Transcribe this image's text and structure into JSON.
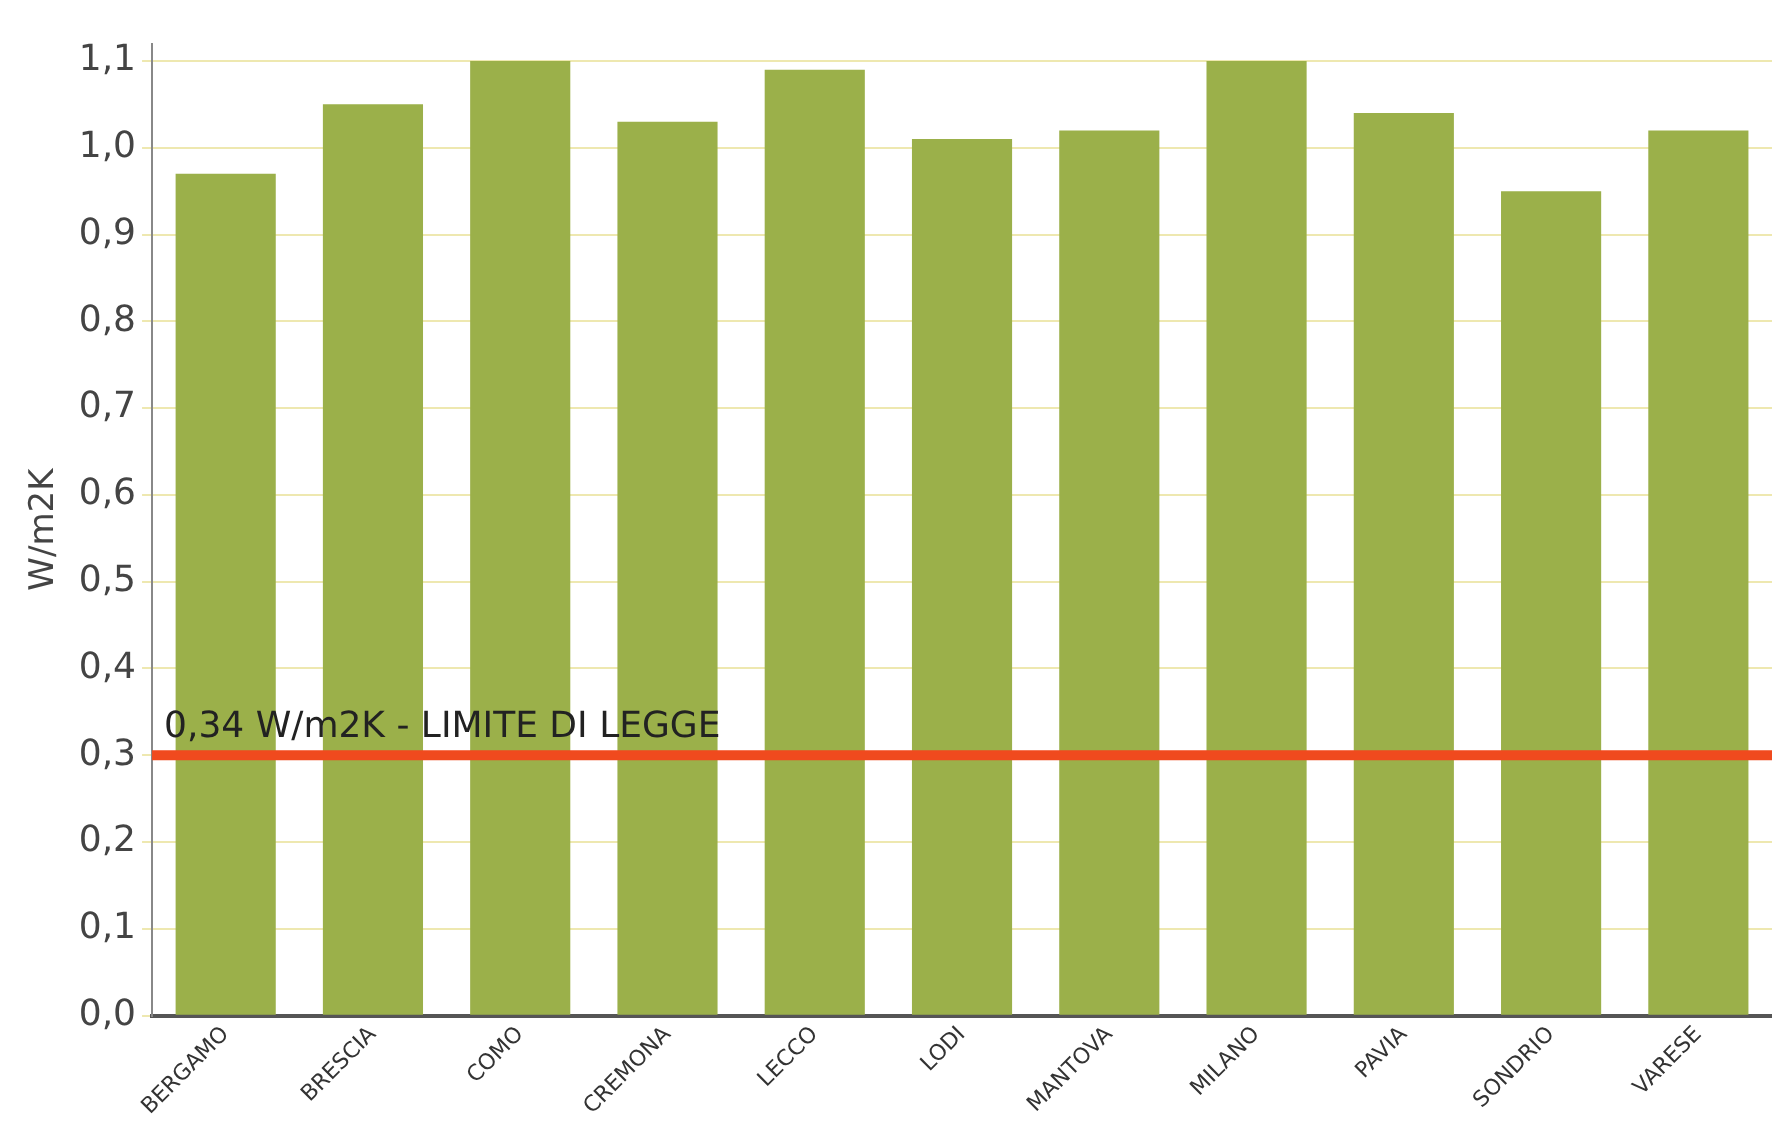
{
  "chart_data": {
    "type": "bar",
    "ylabel": "W/m2K",
    "categories": [
      "BERGAMO",
      "BRESCIA",
      "COMO",
      "CREMONA",
      "LECCO",
      "LODI",
      "MANTOVA",
      "MILANO",
      "PAVIA",
      "SONDRIO",
      "VARESE"
    ],
    "values": [
      0.97,
      1.05,
      1.1,
      1.03,
      1.09,
      1.01,
      1.02,
      1.1,
      1.04,
      0.95,
      1.02
    ],
    "color": "#9bb04a",
    "ylim": [
      0,
      1.12
    ],
    "yticks": [
      {
        "value": 0,
        "label": "0,0"
      },
      {
        "value": 0.1,
        "label": "0,1"
      },
      {
        "value": 0.2,
        "label": "0,2"
      },
      {
        "value": 0.3,
        "label": "0,3"
      },
      {
        "value": 0.4,
        "label": "0,4"
      },
      {
        "value": 0.5,
        "label": "0,5"
      },
      {
        "value": 0.6,
        "label": "0,6"
      },
      {
        "value": 0.7,
        "label": "0,7"
      },
      {
        "value": 0.8,
        "label": "0,8"
      },
      {
        "value": 0.9,
        "label": "0,9"
      },
      {
        "value": 1.0,
        "label": "1,0"
      },
      {
        "value": 1.1,
        "label": "1,1"
      }
    ],
    "grid": "y",
    "legend": false,
    "ref_lines": [
      {
        "axis": "y",
        "value": 0.3,
        "label": "0,34 W/m2K - LIMITE DI LEGGE",
        "color": "#f04a1e"
      }
    ]
  }
}
